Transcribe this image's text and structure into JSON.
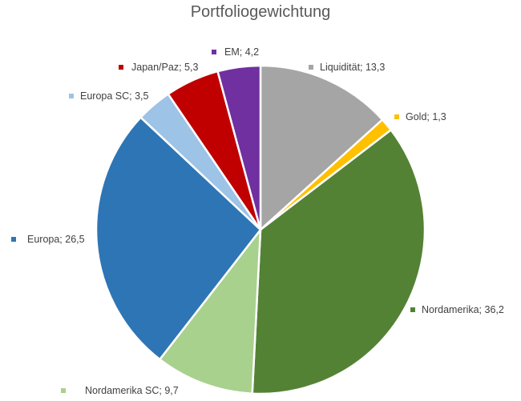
{
  "chart_data": {
    "type": "pie",
    "title": "Portfoliogewichtung",
    "start_angle_deg": 0,
    "direction": "clockwise",
    "legend": "data labels next to slices",
    "slices": [
      {
        "name": "Liquidität",
        "value": 13.3,
        "label": "Liquidität; 13,3",
        "color": "#A5A5A5"
      },
      {
        "name": "Gold",
        "value": 1.3,
        "label": "Gold; 1,3",
        "color": "#FFC000"
      },
      {
        "name": "Nordamerika",
        "value": 36.2,
        "label": "Nordamerika; 36,2",
        "color": "#548235"
      },
      {
        "name": "Nordamerika  SC",
        "value": 9.7,
        "label": "Nordamerika  SC; 9,7",
        "color": "#A9D18E"
      },
      {
        "name": "Europa",
        "value": 26.5,
        "label": "Europa; 26,5",
        "color": "#2E75B6"
      },
      {
        "name": "Europa SC",
        "value": 3.5,
        "label": "Europa SC; 3,5",
        "color": "#9DC3E6"
      },
      {
        "name": "Japan/Paz",
        "value": 5.3,
        "label": "Japan/Paz; 5,3",
        "color": "#C00000"
      },
      {
        "name": "EM",
        "value": 4.2,
        "label": "EM; 4,2",
        "color": "#7030A0"
      }
    ]
  }
}
